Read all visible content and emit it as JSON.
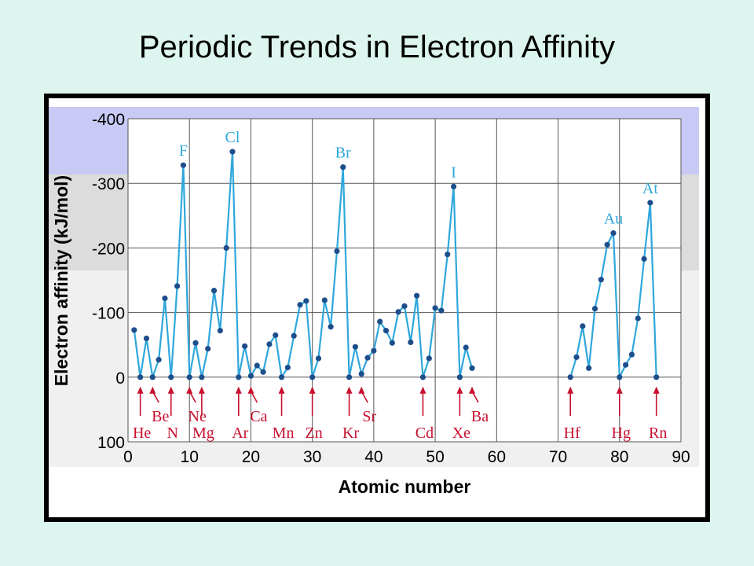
{
  "slide": {
    "title": "Periodic Trends in Electron Affinity"
  },
  "colors": {
    "line": "#2ea7dc",
    "marker": "#1d4e8c",
    "label_element": "#2ea7dc",
    "arrow": "#c8102e",
    "band_top": "#c9c9f5",
    "band_mid": "#dcdcdc"
  },
  "chart_data": {
    "type": "line",
    "title": "",
    "xlabel": "Atomic number",
    "ylabel": "Electron affinity (kJ/mol)",
    "xlim": [
      0,
      90
    ],
    "ylim": [
      100,
      -400
    ],
    "y_axis_inverted": true,
    "grid": true,
    "xticks": [
      0,
      10,
      20,
      30,
      40,
      50,
      60,
      70,
      80,
      90
    ],
    "yticks": [
      -400,
      -300,
      -200,
      -100,
      0,
      100
    ],
    "xtick_labels": [
      "0",
      "10",
      "20",
      "30",
      "40",
      "50",
      "60",
      "70",
      "80",
      "90"
    ],
    "ytick_labels": [
      "-400",
      "-300",
      "-200",
      "-100",
      "0",
      "100"
    ],
    "series": [
      {
        "x": [
          1,
          2,
          3,
          4,
          5,
          6,
          7,
          8,
          9,
          10,
          11,
          12,
          13,
          14,
          15,
          16,
          17,
          18,
          19,
          20,
          21,
          22,
          23,
          24,
          25,
          26,
          27,
          28,
          29,
          30,
          31,
          32,
          33,
          34,
          35,
          36,
          37,
          38,
          39,
          40,
          41,
          42,
          43,
          44,
          45,
          46,
          47,
          48,
          49,
          50,
          51,
          52,
          53,
          54,
          55,
          56
        ],
        "y": [
          -73,
          0,
          -60,
          0,
          -27,
          -122,
          0,
          -141,
          -328,
          0,
          -53,
          0,
          -44,
          -134,
          -72,
          -200,
          -349,
          0,
          -48,
          -2,
          -18,
          -8,
          -51,
          -65,
          0,
          -15,
          -64,
          -112,
          -118,
          0,
          -29,
          -119,
          -78,
          -195,
          -325,
          0,
          -47,
          -5,
          -30,
          -41,
          -86,
          -72,
          -53,
          -101,
          -110,
          -54,
          -126,
          0,
          -29,
          -107,
          -103,
          -190,
          -295,
          0,
          -46,
          -14
        ]
      },
      {
        "x": [
          72,
          73,
          74,
          75,
          76,
          77,
          78,
          79,
          80,
          81,
          82,
          83,
          84,
          85,
          86
        ],
        "y": [
          0,
          -31,
          -79,
          -14,
          -106,
          -151,
          -205,
          -223,
          0,
          -19,
          -35,
          -91,
          -183,
          -270,
          0
        ]
      }
    ],
    "peak_labels": [
      {
        "text": "F",
        "x": 9,
        "y": -328
      },
      {
        "text": "Cl",
        "x": 17,
        "y": -349
      },
      {
        "text": "Br",
        "x": 35,
        "y": -325
      },
      {
        "text": "I",
        "x": 53,
        "y": -295
      },
      {
        "text": "Au",
        "x": 79,
        "y": -223
      },
      {
        "text": "At",
        "x": 85,
        "y": -270
      }
    ],
    "arrow_labels": [
      {
        "text": "He",
        "x": 2,
        "row": "lower"
      },
      {
        "text": "Be",
        "x": 4,
        "row": "upper"
      },
      {
        "text": "N",
        "x": 7,
        "row": "lower"
      },
      {
        "text": "Ne",
        "x": 10,
        "row": "upper"
      },
      {
        "text": "Mg",
        "x": 12,
        "row": "lower"
      },
      {
        "text": "Ar",
        "x": 18,
        "row": "lower"
      },
      {
        "text": "Ca",
        "x": 20,
        "row": "upper"
      },
      {
        "text": "Mn",
        "x": 25,
        "row": "lower"
      },
      {
        "text": "Zn",
        "x": 30,
        "row": "lower"
      },
      {
        "text": "Kr",
        "x": 36,
        "row": "lower"
      },
      {
        "text": "Sr",
        "x": 38,
        "row": "upper"
      },
      {
        "text": "Cd",
        "x": 48,
        "row": "lower"
      },
      {
        "text": "Xe",
        "x": 54,
        "row": "lower"
      },
      {
        "text": "Ba",
        "x": 56,
        "row": "upper"
      },
      {
        "text": "Hf",
        "x": 72,
        "row": "lower"
      },
      {
        "text": "Hg",
        "x": 80,
        "row": "lower"
      },
      {
        "text": "Rn",
        "x": 86,
        "row": "lower"
      }
    ]
  }
}
